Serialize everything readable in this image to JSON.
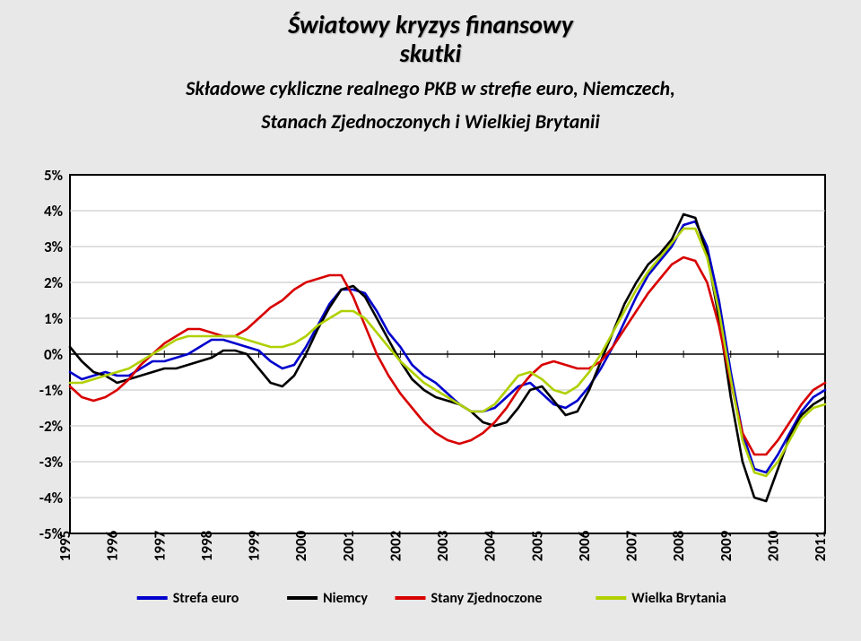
{
  "title_line1": "Światowy kryzys finansowy",
  "title_line2": "skutki",
  "subtitle_line1": "Składowe cykliczne realnego PKB w strefie euro, Niemczech,",
  "subtitle_line2": "Stanach Zjednoczonych i Wielkiej Brytanii",
  "chart": {
    "type": "line",
    "background_color": "#ffffff",
    "page_background": "#e8e8e8",
    "xlabels": [
      "1995",
      "1996",
      "1997",
      "1998",
      "1999",
      "2000",
      "2001",
      "2002",
      "2003",
      "2004",
      "2005",
      "2006",
      "2007",
      "2008",
      "2009",
      "2010",
      "2011"
    ],
    "ylim": [
      -5,
      5
    ],
    "ytick_step": 1,
    "yticks": [
      "5%",
      "4%",
      "3%",
      "2%",
      "1%",
      "0%",
      "-1%",
      "-2%",
      "-3%",
      "-4%",
      "-5%"
    ],
    "grid_color": "#c0c0c0",
    "axis_color": "#000000",
    "line_width": 2.6,
    "x_values_per_year": 4,
    "series": [
      {
        "name": "Strefa euro",
        "color": "#0000cc",
        "values": [
          -0.5,
          -0.7,
          -0.6,
          -0.5,
          -0.6,
          -0.6,
          -0.4,
          -0.2,
          -0.2,
          -0.1,
          0.0,
          0.2,
          0.4,
          0.4,
          0.3,
          0.2,
          0.1,
          -0.2,
          -0.4,
          -0.3,
          0.2,
          0.8,
          1.4,
          1.8,
          1.8,
          1.7,
          1.2,
          0.6,
          0.2,
          -0.3,
          -0.6,
          -0.8,
          -1.1,
          -1.4,
          -1.6,
          -1.6,
          -1.5,
          -1.2,
          -0.9,
          -0.8,
          -1.1,
          -1.4,
          -1.5,
          -1.3,
          -0.9,
          -0.4,
          0.2,
          0.9,
          1.6,
          2.2,
          2.6,
          3.0,
          3.6,
          3.7,
          3.0,
          1.5,
          -0.5,
          -2.2,
          -3.2,
          -3.3,
          -2.8,
          -2.2,
          -1.6,
          -1.2,
          -1.0
        ]
      },
      {
        "name": "Niemcy",
        "color": "#000000",
        "values": [
          0.2,
          -0.2,
          -0.5,
          -0.6,
          -0.8,
          -0.7,
          -0.6,
          -0.5,
          -0.4,
          -0.4,
          -0.3,
          -0.2,
          -0.1,
          0.1,
          0.1,
          0.0,
          -0.4,
          -0.8,
          -0.9,
          -0.6,
          0.0,
          0.7,
          1.3,
          1.8,
          1.9,
          1.6,
          1.0,
          0.4,
          -0.2,
          -0.7,
          -1.0,
          -1.2,
          -1.3,
          -1.4,
          -1.6,
          -1.9,
          -2.0,
          -1.9,
          -1.5,
          -1.0,
          -0.9,
          -1.3,
          -1.7,
          -1.6,
          -1.0,
          -0.2,
          0.6,
          1.4,
          2.0,
          2.5,
          2.8,
          3.2,
          3.9,
          3.8,
          2.8,
          1.0,
          -1.2,
          -3.0,
          -4.0,
          -4.1,
          -3.2,
          -2.3,
          -1.7,
          -1.4,
          -1.2
        ]
      },
      {
        "name": "Stany Zjednoczone",
        "color": "#d80000",
        "values": [
          -0.9,
          -1.2,
          -1.3,
          -1.2,
          -1.0,
          -0.7,
          -0.3,
          0.0,
          0.3,
          0.5,
          0.7,
          0.7,
          0.6,
          0.5,
          0.5,
          0.7,
          1.0,
          1.3,
          1.5,
          1.8,
          2.0,
          2.1,
          2.2,
          2.2,
          1.6,
          0.8,
          0.0,
          -0.6,
          -1.1,
          -1.5,
          -1.9,
          -2.2,
          -2.4,
          -2.5,
          -2.4,
          -2.2,
          -1.9,
          -1.5,
          -1.0,
          -0.6,
          -0.3,
          -0.2,
          -0.3,
          -0.4,
          -0.4,
          -0.2,
          0.2,
          0.7,
          1.2,
          1.7,
          2.1,
          2.5,
          2.7,
          2.6,
          2.0,
          0.8,
          -0.8,
          -2.2,
          -2.8,
          -2.8,
          -2.4,
          -1.9,
          -1.4,
          -1.0,
          -0.8
        ]
      },
      {
        "name": "Wielka Brytania",
        "color": "#b0d000",
        "values": [
          -0.8,
          -0.8,
          -0.7,
          -0.6,
          -0.5,
          -0.4,
          -0.2,
          0.0,
          0.2,
          0.4,
          0.5,
          0.5,
          0.5,
          0.5,
          0.5,
          0.4,
          0.3,
          0.2,
          0.2,
          0.3,
          0.5,
          0.8,
          1.0,
          1.2,
          1.2,
          1.0,
          0.6,
          0.2,
          -0.2,
          -0.5,
          -0.8,
          -1.0,
          -1.2,
          -1.4,
          -1.6,
          -1.6,
          -1.4,
          -1.0,
          -0.6,
          -0.5,
          -0.7,
          -1.0,
          -1.1,
          -0.9,
          -0.5,
          0.0,
          0.6,
          1.2,
          1.8,
          2.3,
          2.7,
          3.1,
          3.5,
          3.5,
          2.7,
          1.2,
          -0.7,
          -2.4,
          -3.3,
          -3.4,
          -3.0,
          -2.4,
          -1.8,
          -1.5,
          -1.4
        ]
      }
    ],
    "legend": {
      "items": [
        "Strefa euro",
        "Niemcy",
        "Stany Zjednoczone",
        "Wielka Brytania"
      ],
      "font_size": 16
    },
    "label_fontsize": 17,
    "x_label_rotation": "vertical"
  }
}
